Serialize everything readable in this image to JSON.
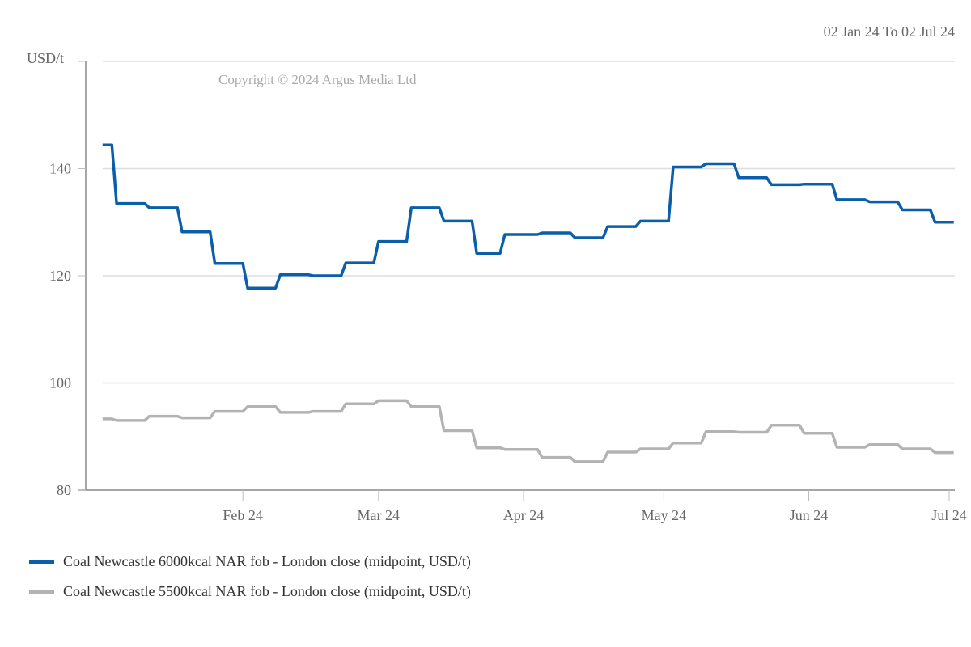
{
  "chart_data": {
    "type": "line",
    "date_range_label": "02 Jan 24 To 02 Jul 24",
    "copyright": "Copyright © 2024 Argus Media Ltd",
    "ylabel": "USD/t",
    "ylim": [
      80,
      160
    ],
    "yticks": [
      80,
      100,
      120,
      140
    ],
    "ytick_labels": [
      "80",
      "100",
      "120",
      "140"
    ],
    "xlim": [
      "2024-01-02",
      "2024-07-02"
    ],
    "xticks": [
      "2024-02-01",
      "2024-03-01",
      "2024-04-01",
      "2024-05-01",
      "2024-06-01",
      "2024-07-01"
    ],
    "xtick_labels": [
      "Feb 24",
      "Mar 24",
      "Apr 24",
      "May 24",
      "Jun 24",
      "Jul 24"
    ],
    "grid": true,
    "legend_position": "bottom-left",
    "end_date": "2024-07-02",
    "series": [
      {
        "name": "Coal Newcastle 6000kcal NAR fob - London close (midpoint, USD/t)",
        "color": "#0A5EAA",
        "points": [
          [
            "2024-01-02",
            144.4
          ],
          [
            "2024-01-05",
            133.5
          ],
          [
            "2024-01-12",
            132.7
          ],
          [
            "2024-01-19",
            128.2
          ],
          [
            "2024-01-26",
            122.3
          ],
          [
            "2024-02-02",
            117.7
          ],
          [
            "2024-02-09",
            120.2
          ],
          [
            "2024-02-16",
            120.0
          ],
          [
            "2024-02-23",
            122.4
          ],
          [
            "2024-03-01",
            126.4
          ],
          [
            "2024-03-08",
            132.7
          ],
          [
            "2024-03-15",
            130.2
          ],
          [
            "2024-03-22",
            124.2
          ],
          [
            "2024-03-28",
            127.7
          ],
          [
            "2024-04-05",
            128.0
          ],
          [
            "2024-04-12",
            127.1
          ],
          [
            "2024-04-19",
            129.2
          ],
          [
            "2024-04-26",
            130.2
          ],
          [
            "2024-05-03",
            140.3
          ],
          [
            "2024-05-10",
            140.9
          ],
          [
            "2024-05-17",
            138.3
          ],
          [
            "2024-05-24",
            137.0
          ],
          [
            "2024-05-31",
            137.1
          ],
          [
            "2024-06-07",
            134.2
          ],
          [
            "2024-06-14",
            133.8
          ],
          [
            "2024-06-21",
            132.3
          ],
          [
            "2024-06-28",
            130.0
          ]
        ]
      },
      {
        "name": "Coal Newcastle 5500kcal NAR fob - London close (midpoint, USD/t)",
        "color": "#B3B3B3",
        "points": [
          [
            "2024-01-02",
            93.3
          ],
          [
            "2024-01-05",
            93.0
          ],
          [
            "2024-01-12",
            93.8
          ],
          [
            "2024-01-19",
            93.5
          ],
          [
            "2024-01-26",
            94.7
          ],
          [
            "2024-02-02",
            95.6
          ],
          [
            "2024-02-09",
            94.5
          ],
          [
            "2024-02-16",
            94.7
          ],
          [
            "2024-02-23",
            96.1
          ],
          [
            "2024-03-01",
            96.7
          ],
          [
            "2024-03-08",
            95.6
          ],
          [
            "2024-03-15",
            91.1
          ],
          [
            "2024-03-22",
            87.9
          ],
          [
            "2024-03-28",
            87.6
          ],
          [
            "2024-04-05",
            86.1
          ],
          [
            "2024-04-12",
            85.3
          ],
          [
            "2024-04-19",
            87.1
          ],
          [
            "2024-04-26",
            87.7
          ],
          [
            "2024-05-03",
            88.8
          ],
          [
            "2024-05-10",
            90.9
          ],
          [
            "2024-05-17",
            90.8
          ],
          [
            "2024-05-24",
            92.1
          ],
          [
            "2024-05-31",
            90.6
          ],
          [
            "2024-06-07",
            88.0
          ],
          [
            "2024-06-14",
            88.5
          ],
          [
            "2024-06-21",
            87.7
          ],
          [
            "2024-06-28",
            87.0
          ]
        ]
      }
    ]
  }
}
